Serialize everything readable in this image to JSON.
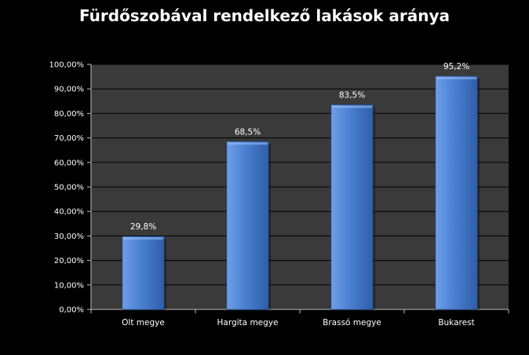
{
  "chart_data": {
    "type": "bar",
    "title": "Fürdőszobával rendelkező lakások aránya",
    "categories": [
      "Olt megye",
      "Hargita megye",
      "Brassó megye",
      "Bukarest"
    ],
    "values": [
      29.8,
      68.5,
      83.5,
      95.2
    ],
    "data_labels": [
      "29,8%",
      "68,5%",
      "83,5%",
      "95,2%"
    ],
    "ylim": [
      0,
      100
    ],
    "y_ticks": [
      0,
      10,
      20,
      30,
      40,
      50,
      60,
      70,
      80,
      90,
      100
    ],
    "y_tick_labels": [
      "0,00%",
      "10,00%",
      "20,00%",
      "30,00%",
      "40,00%",
      "50,00%",
      "60,00%",
      "70,00%",
      "80,00%",
      "90,00%",
      "100,00%"
    ],
    "xlabel": "",
    "ylabel": "",
    "grid": true,
    "legend": "none",
    "colors": {
      "background": "#000000",
      "plot_area": "#3a3a3a",
      "gridline": "#000000",
      "bar": "#4a7fd0",
      "bar_light": "#6f9ee8",
      "bar_dark": "#2f5ea8",
      "text": "#ffffff"
    }
  }
}
